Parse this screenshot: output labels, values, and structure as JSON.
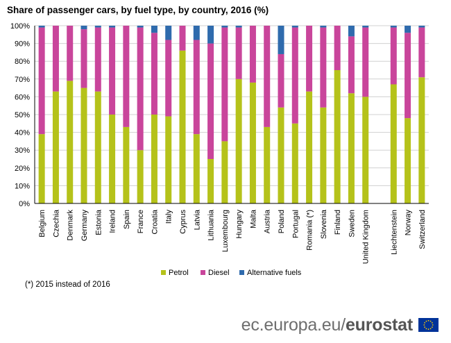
{
  "title": "Share of passenger cars, by fuel type, by country, 2016 (%)",
  "footnote": "(*) 2015 instead of 2016",
  "footer": {
    "domain_part": "ec.europa.eu/",
    "brand_part": "eurostat"
  },
  "colors": {
    "petrol": "#b5c21a",
    "diesel": "#c9459b",
    "alternative": "#2f6bad",
    "grid": "#d0d0d0"
  },
  "chart_data": {
    "type": "bar",
    "stacked": true,
    "ylim": [
      0,
      100
    ],
    "yticks": [
      "0%",
      "10%",
      "20%",
      "30%",
      "40%",
      "50%",
      "60%",
      "70%",
      "80%",
      "90%",
      "100%"
    ],
    "grid": true,
    "legend_position": "bottom",
    "categories": [
      "Belgium",
      "Czechia",
      "Denmark",
      "Germany",
      "Estonia",
      "Ireland",
      "Spain",
      "France",
      "Croatia",
      "Italy",
      "Cyprus",
      "Latvia",
      "Lithuania",
      "Luxembourg",
      "Hungary",
      "Malta",
      "Austria",
      "Poland",
      "Portugal",
      "Romania (*)",
      "Slovenia",
      "Finland",
      "Sweden",
      "United Kingdom",
      "",
      "Liechtenstein",
      "Norway",
      "Switzerland"
    ],
    "series": [
      {
        "name": "Petrol",
        "values": [
          39,
          63,
          69,
          65,
          63,
          50,
          43,
          30,
          50,
          49,
          86,
          39,
          25,
          35,
          70,
          68,
          43,
          54,
          45,
          63,
          54,
          75,
          62,
          60,
          null,
          67,
          48,
          71
        ]
      },
      {
        "name": "Diesel",
        "values": [
          60,
          37,
          31,
          33,
          36,
          49,
          57,
          69,
          46,
          43,
          14,
          53,
          65,
          64,
          29,
          32,
          57,
          30,
          54,
          37,
          45,
          25,
          32,
          39,
          null,
          32,
          48,
          28
        ]
      },
      {
        "name": "Alternative fuels",
        "values": [
          1,
          0,
          0,
          2,
          1,
          1,
          0,
          1,
          4,
          8,
          0,
          8,
          10,
          1,
          1,
          0,
          0,
          16,
          1,
          0,
          1,
          0,
          6,
          1,
          null,
          1,
          4,
          1
        ]
      }
    ]
  }
}
